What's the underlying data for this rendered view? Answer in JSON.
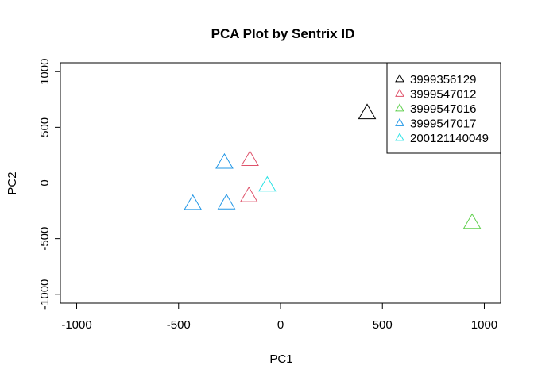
{
  "chart_data": {
    "type": "scatter",
    "title": "PCA Plot by Sentrix ID",
    "xlabel": "PC1",
    "ylabel": "PC2",
    "xlim": [
      -1080,
      1080
    ],
    "ylim": [
      -1080,
      1080
    ],
    "xticks": [
      -1000,
      -500,
      0,
      500,
      1000
    ],
    "yticks": [
      -1000,
      -500,
      0,
      500,
      1000
    ],
    "xtick_labels": [
      "-1000",
      "-500",
      "0",
      "500",
      "1000"
    ],
    "ytick_labels": [
      "-1000",
      "-500",
      "0",
      "500",
      "1000"
    ],
    "marker": "open-triangle",
    "grid": false,
    "legend_position": "top-right",
    "series": [
      {
        "name": "3999356129",
        "color": "#000000",
        "points": [
          [
            425,
            620
          ]
        ]
      },
      {
        "name": "3999547012",
        "color": "#DF536B",
        "points": [
          [
            -150,
            200
          ],
          [
            -155,
            -125
          ]
        ]
      },
      {
        "name": "3999547016",
        "color": "#61D04F",
        "points": [
          [
            940,
            -365
          ]
        ]
      },
      {
        "name": "3999547017",
        "color": "#2297E6",
        "points": [
          [
            -275,
            175
          ],
          [
            -265,
            -190
          ],
          [
            -430,
            -195
          ]
        ]
      },
      {
        "name": "200121140049",
        "color": "#28E2E5",
        "points": [
          [
            -65,
            -30
          ]
        ]
      }
    ]
  }
}
